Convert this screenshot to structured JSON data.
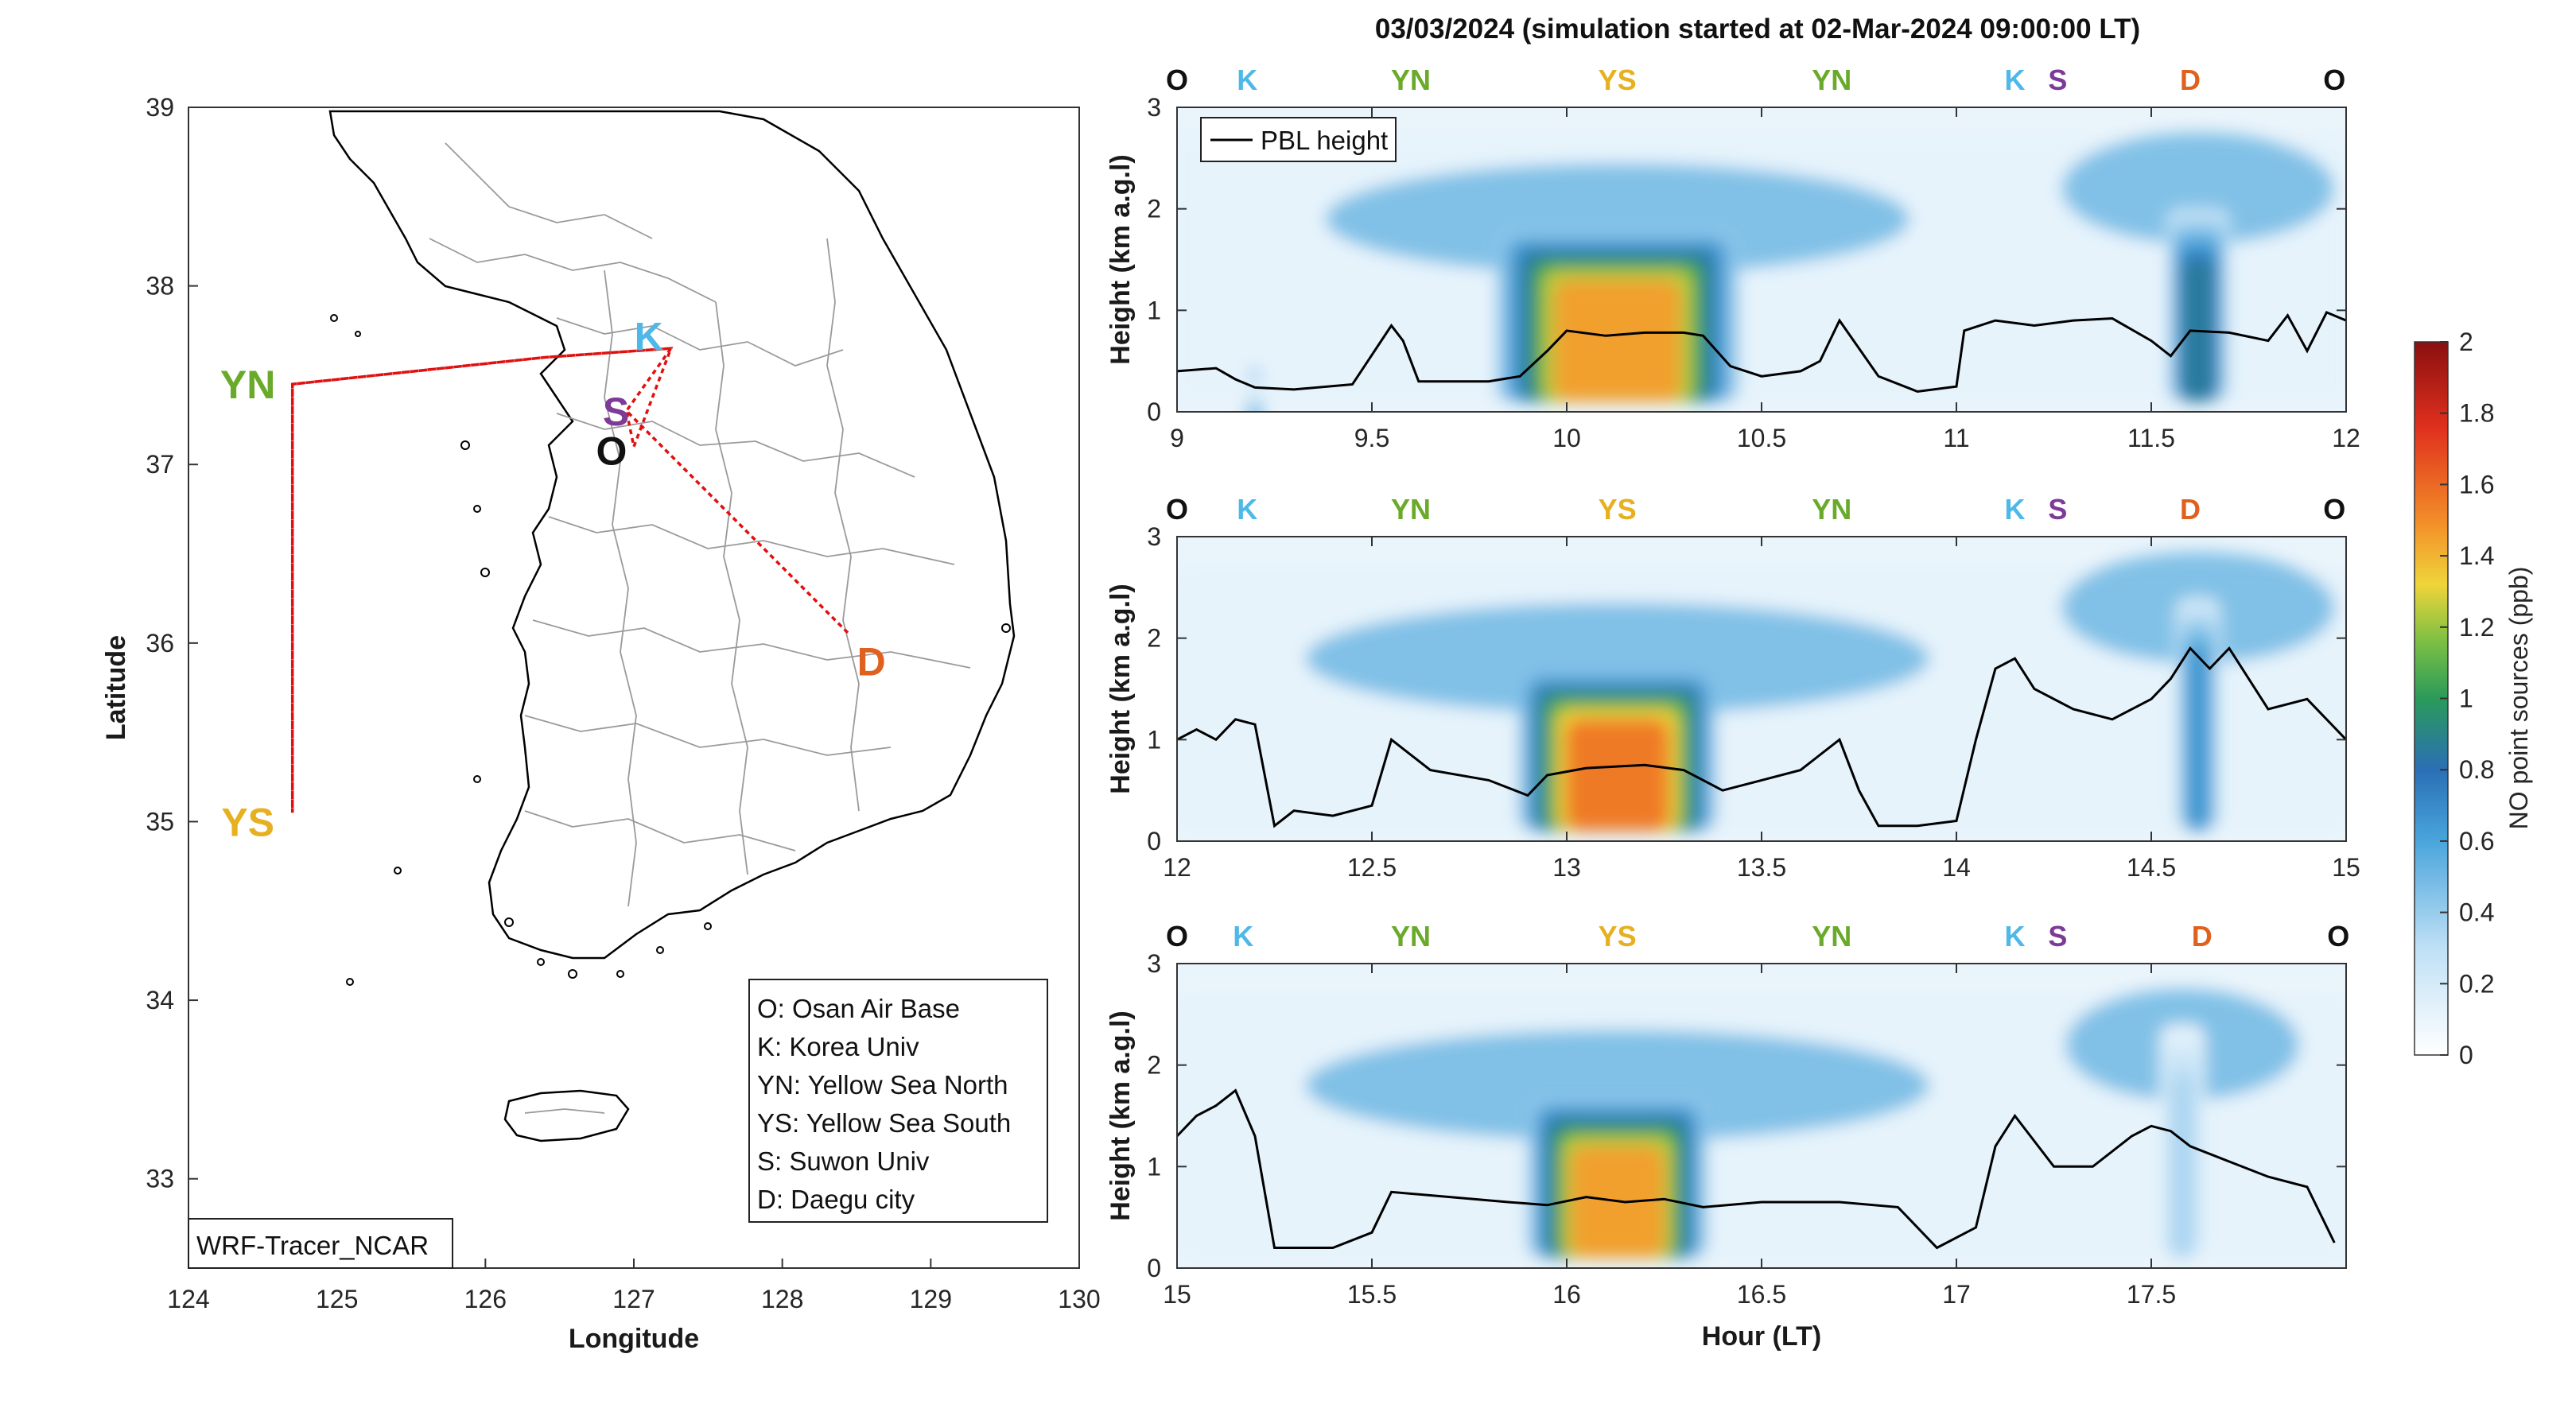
{
  "title": "03/03/2024 (simulation started at 02-Mar-2024 09:00:00 LT)",
  "colors": {
    "O": "#111111",
    "K": "#4eb8e8",
    "YN": "#6aaa2a",
    "YS": "#e6b020",
    "S": "#7d3a96",
    "D": "#e0601e",
    "track": "#e01010"
  },
  "map": {
    "xlabel": "Longitude",
    "ylabel": "Latitude",
    "xticks": [
      "124",
      "125",
      "126",
      "127",
      "128",
      "129",
      "130"
    ],
    "yticks": [
      "33",
      "34",
      "35",
      "36",
      "37",
      "38",
      "39"
    ],
    "xlim": [
      124,
      130
    ],
    "ylim": [
      32.5,
      39
    ],
    "model_label": "WRF-Tracer_NCAR",
    "site_labels": [
      {
        "code": "K",
        "lon": 127.1,
        "lat": 37.72
      },
      {
        "code": "S",
        "lon": 126.88,
        "lat": 37.3
      },
      {
        "code": "O",
        "lon": 126.85,
        "lat": 37.08
      },
      {
        "code": "YN",
        "lon": 124.4,
        "lat": 37.45
      },
      {
        "code": "YS",
        "lon": 124.4,
        "lat": 35.0
      },
      {
        "code": "D",
        "lon": 128.6,
        "lat": 35.9
      }
    ],
    "track_points": [
      {
        "lon": 127.0,
        "lat": 37.1
      },
      {
        "lon": 127.25,
        "lat": 37.65
      },
      {
        "lon": 126.4,
        "lat": 37.6
      },
      {
        "lon": 124.7,
        "lat": 37.45
      },
      {
        "lon": 124.7,
        "lat": 35.05
      },
      {
        "lon": 124.7,
        "lat": 37.45
      },
      {
        "lon": 126.4,
        "lat": 37.6
      },
      {
        "lon": 127.25,
        "lat": 37.65
      },
      {
        "lon": 126.95,
        "lat": 37.3
      },
      {
        "lon": 128.45,
        "lat": 36.05
      },
      {
        "lon": 126.95,
        "lat": 37.3
      },
      {
        "lon": 127.0,
        "lat": 37.1
      }
    ],
    "legend": [
      "O: Osan Air Base",
      "K: Korea Univ",
      "YN: Yellow Sea North",
      "YS: Yellow Sea South",
      "S: Suwon Univ",
      "D: Daegu city"
    ]
  },
  "colorbar": {
    "label": "NO point sources (ppb)",
    "ticks": [
      "0",
      "0.2",
      "0.4",
      "0.6",
      "0.8",
      "1",
      "1.2",
      "1.4",
      "1.6",
      "1.8",
      "2"
    ],
    "range": [
      0,
      2
    ]
  },
  "chart_data": [
    {
      "type": "heatmap",
      "xlabel": "",
      "ylabel": "Height (km a.g.l)",
      "xlim": [
        9,
        12
      ],
      "ylim": [
        0,
        3
      ],
      "xticks": [
        "9",
        "9.5",
        "10",
        "10.5",
        "11",
        "11.5",
        "12"
      ],
      "yticks": [
        "0",
        "1",
        "2",
        "3"
      ],
      "legend_entry": "PBL height",
      "segment_labels": [
        {
          "code": "O",
          "x": 9.0
        },
        {
          "code": "K",
          "x": 9.18
        },
        {
          "code": "YN",
          "x": 9.6
        },
        {
          "code": "YS",
          "x": 10.13
        },
        {
          "code": "YN",
          "x": 10.68
        },
        {
          "code": "K",
          "x": 11.15
        },
        {
          "code": "S",
          "x": 11.26
        },
        {
          "code": "D",
          "x": 11.6
        },
        {
          "code": "O",
          "x": 11.97
        }
      ],
      "plumes": [
        {
          "x_center": 10.13,
          "x_width": 0.27,
          "peak": 1.45,
          "top": 1.8,
          "spread_top": 2.3,
          "spread_width": 0.75
        },
        {
          "x_center": 11.62,
          "x_width": 0.07,
          "peak": 0.85,
          "top": 2.0,
          "spread_top": 2.6,
          "spread_width": 0.35
        },
        {
          "x_center": 9.2,
          "x_width": 0.02,
          "peak": 0.4,
          "top": 0.3,
          "spread_top": 0.3,
          "spread_width": 0.02
        }
      ],
      "pbl_height": {
        "x": [
          9.0,
          9.1,
          9.15,
          9.2,
          9.3,
          9.45,
          9.55,
          9.58,
          9.62,
          9.7,
          9.8,
          9.88,
          9.95,
          10.0,
          10.1,
          10.2,
          10.3,
          10.35,
          10.42,
          10.5,
          10.6,
          10.65,
          10.7,
          10.8,
          10.9,
          11.0,
          11.02,
          11.1,
          11.2,
          11.3,
          11.4,
          11.5,
          11.55,
          11.6,
          11.7,
          11.8,
          11.85,
          11.9,
          11.95,
          12.0
        ],
        "y": [
          0.4,
          0.43,
          0.32,
          0.24,
          0.22,
          0.27,
          0.85,
          0.7,
          0.3,
          0.3,
          0.3,
          0.35,
          0.6,
          0.8,
          0.75,
          0.78,
          0.78,
          0.75,
          0.45,
          0.35,
          0.4,
          0.5,
          0.9,
          0.35,
          0.2,
          0.25,
          0.8,
          0.9,
          0.85,
          0.9,
          0.92,
          0.7,
          0.55,
          0.8,
          0.78,
          0.7,
          0.95,
          0.6,
          0.98,
          0.9
        ]
      }
    },
    {
      "type": "heatmap",
      "xlabel": "",
      "ylabel": "Height (km a.g.l)",
      "xlim": [
        12,
        15
      ],
      "ylim": [
        0,
        3
      ],
      "xticks": [
        "12",
        "12.5",
        "13",
        "13.5",
        "14",
        "14.5",
        "15"
      ],
      "yticks": [
        "0",
        "1",
        "2",
        "3"
      ],
      "legend_entry": "",
      "segment_labels": [
        {
          "code": "O",
          "x": 12.0
        },
        {
          "code": "K",
          "x": 12.18
        },
        {
          "code": "YN",
          "x": 12.6
        },
        {
          "code": "YS",
          "x": 13.13
        },
        {
          "code": "YN",
          "x": 13.68
        },
        {
          "code": "K",
          "x": 14.15
        },
        {
          "code": "S",
          "x": 14.26
        },
        {
          "code": "D",
          "x": 14.6
        },
        {
          "code": "O",
          "x": 14.97
        }
      ],
      "plumes": [
        {
          "x_center": 13.13,
          "x_width": 0.22,
          "peak": 1.55,
          "top": 1.7,
          "spread_top": 2.2,
          "spread_width": 0.8
        },
        {
          "x_center": 14.62,
          "x_width": 0.05,
          "peak": 0.65,
          "top": 2.4,
          "spread_top": 2.7,
          "spread_width": 0.35
        }
      ],
      "pbl_height": {
        "x": [
          12.0,
          12.05,
          12.1,
          12.15,
          12.2,
          12.25,
          12.3,
          12.4,
          12.5,
          12.55,
          12.65,
          12.8,
          12.9,
          12.95,
          13.05,
          13.2,
          13.3,
          13.4,
          13.5,
          13.6,
          13.7,
          13.75,
          13.8,
          13.9,
          14.0,
          14.05,
          14.1,
          14.15,
          14.2,
          14.3,
          14.4,
          14.5,
          14.55,
          14.6,
          14.65,
          14.7,
          14.8,
          14.9,
          15.0
        ],
        "y": [
          1.0,
          1.1,
          1.0,
          1.2,
          1.15,
          0.15,
          0.3,
          0.25,
          0.35,
          1.0,
          0.7,
          0.6,
          0.45,
          0.65,
          0.72,
          0.75,
          0.7,
          0.5,
          0.6,
          0.7,
          1.0,
          0.5,
          0.15,
          0.15,
          0.2,
          1.0,
          1.7,
          1.8,
          1.5,
          1.3,
          1.2,
          1.4,
          1.6,
          1.9,
          1.7,
          1.9,
          1.3,
          1.4,
          1.0
        ]
      }
    },
    {
      "type": "heatmap",
      "xlabel": "Hour (LT)",
      "ylabel": "Height (km a.g.l)",
      "xlim": [
        15,
        18
      ],
      "ylim": [
        0,
        3
      ],
      "xticks": [
        "15",
        "15.5",
        "16",
        "16.5",
        "17",
        "17.5"
      ],
      "yticks": [
        "0",
        "1",
        "2",
        "3"
      ],
      "legend_entry": "",
      "segment_labels": [
        {
          "code": "O",
          "x": 15.0
        },
        {
          "code": "K",
          "x": 15.17
        },
        {
          "code": "YN",
          "x": 15.6
        },
        {
          "code": "YS",
          "x": 16.13
        },
        {
          "code": "YN",
          "x": 16.68
        },
        {
          "code": "K",
          "x": 17.15
        },
        {
          "code": "S",
          "x": 17.26
        },
        {
          "code": "D",
          "x": 17.63
        },
        {
          "code": "O",
          "x": 17.98
        }
      ],
      "plumes": [
        {
          "x_center": 16.13,
          "x_width": 0.2,
          "peak": 1.45,
          "top": 1.7,
          "spread_top": 2.2,
          "spread_width": 0.8
        },
        {
          "x_center": 17.58,
          "x_width": 0.05,
          "peak": 0.35,
          "top": 2.4,
          "spread_top": 2.6,
          "spread_width": 0.3
        }
      ],
      "pbl_height": {
        "x": [
          15.0,
          15.05,
          15.1,
          15.15,
          15.2,
          15.25,
          15.4,
          15.5,
          15.55,
          15.7,
          15.85,
          15.95,
          16.05,
          16.15,
          16.25,
          16.35,
          16.5,
          16.7,
          16.85,
          16.95,
          17.05,
          17.1,
          17.15,
          17.25,
          17.35,
          17.45,
          17.5,
          17.55,
          17.6,
          17.7,
          17.8,
          17.9,
          17.97
        ],
        "y": [
          1.3,
          1.5,
          1.6,
          1.75,
          1.3,
          0.2,
          0.2,
          0.35,
          0.75,
          0.7,
          0.65,
          0.62,
          0.7,
          0.65,
          0.68,
          0.6,
          0.65,
          0.65,
          0.6,
          0.2,
          0.4,
          1.2,
          1.5,
          1.0,
          1.0,
          1.3,
          1.4,
          1.35,
          1.2,
          1.05,
          0.9,
          0.8,
          0.25
        ]
      }
    }
  ]
}
